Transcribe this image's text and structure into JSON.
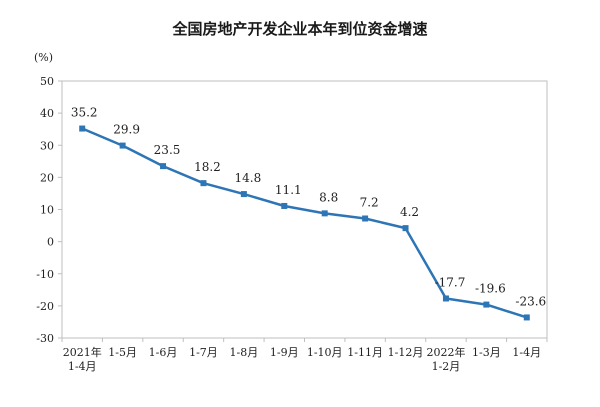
{
  "chart_data": {
    "type": "line",
    "title": "全国房地产开发企业本年到位资金增速",
    "ylabel": "(%)",
    "xlabel": "",
    "ylim": [
      -30,
      50
    ],
    "yticks": [
      50,
      40,
      30,
      20,
      10,
      0,
      -10,
      -20,
      -30
    ],
    "grid": false,
    "color": "#2e75b6",
    "categories": [
      [
        "2021年",
        "1-4月"
      ],
      [
        "1-5月"
      ],
      [
        "1-6月"
      ],
      [
        "1-7月"
      ],
      [
        "1-8月"
      ],
      [
        "1-9月"
      ],
      [
        "1-10月"
      ],
      [
        "1-11月"
      ],
      [
        "1-12月"
      ],
      [
        "2022年",
        "1-2月"
      ],
      [
        "1-3月"
      ],
      [
        "1-4月"
      ]
    ],
    "values": [
      35.2,
      29.9,
      23.5,
      18.2,
      14.8,
      11.1,
      8.8,
      7.2,
      4.2,
      -17.7,
      -19.6,
      -23.6
    ],
    "labels": [
      "35.2",
      "29.9",
      "23.5",
      "18.2",
      "14.8",
      "11.1",
      "8.8",
      "7.2",
      "4.2",
      "-17.7",
      "-19.6",
      "-23.6"
    ]
  }
}
